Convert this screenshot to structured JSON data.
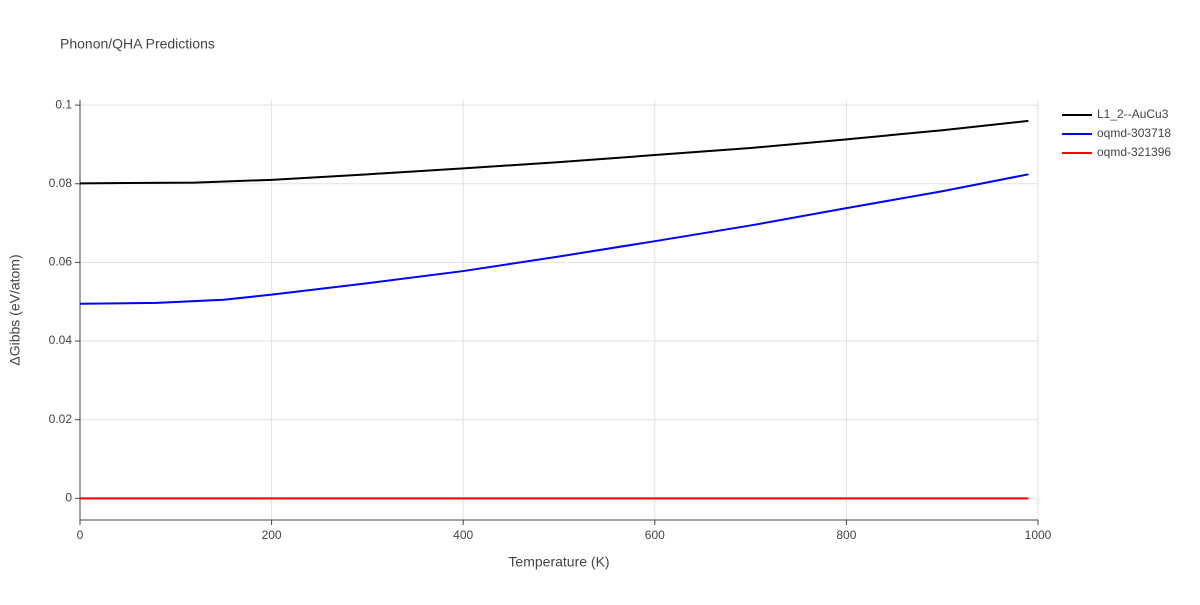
{
  "chart_data": {
    "type": "line",
    "title": "Phonon/QHA Predictions",
    "x_label": "Temperature (K)",
    "y_label": "ΔGibbs (eV/atom)",
    "xlim": [
      0,
      1000
    ],
    "xticks": [
      0,
      200,
      400,
      600,
      800,
      1000
    ],
    "ylim": [
      -0.0055,
      0.1013
    ],
    "yticks": [
      0,
      0.02,
      0.04,
      0.06,
      0.08,
      0.1
    ],
    "grid": true,
    "legend": "right",
    "series": [
      {
        "name": "L1_2--AuCu3",
        "color": "#000000",
        "x": [
          0,
          120,
          200,
          300,
          400,
          500,
          600,
          700,
          800,
          900,
          990
        ],
        "values": [
          0.0801,
          0.0803,
          0.081,
          0.0824,
          0.0839,
          0.0855,
          0.0873,
          0.0891,
          0.0913,
          0.0936,
          0.096
        ]
      },
      {
        "name": "oqmd-303718",
        "color": "#0000ff",
        "x": [
          0,
          80,
          150,
          200,
          300,
          400,
          500,
          600,
          700,
          800,
          900,
          990
        ],
        "values": [
          0.0495,
          0.0497,
          0.0505,
          0.0518,
          0.0547,
          0.0578,
          0.0615,
          0.0654,
          0.0694,
          0.0738,
          0.0781,
          0.0824
        ]
      },
      {
        "name": "oqmd-321396",
        "color": "#ff0000",
        "x": [
          0,
          990
        ],
        "values": [
          0,
          0
        ]
      }
    ]
  }
}
